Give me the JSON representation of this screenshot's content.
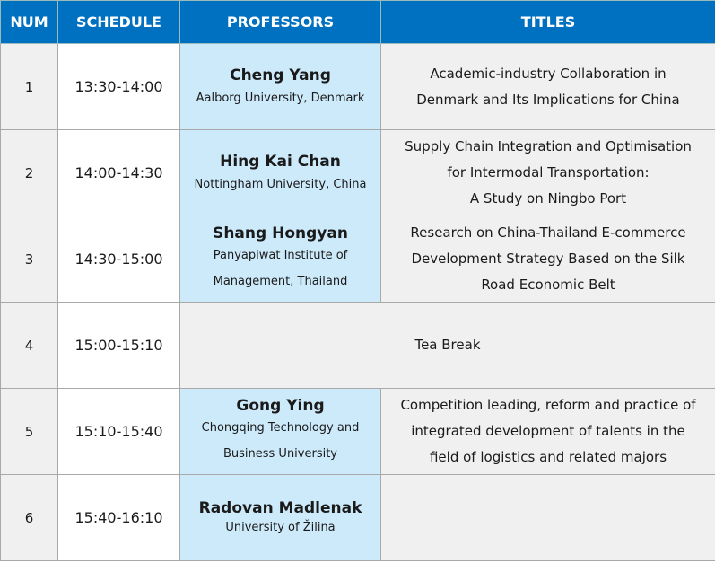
{
  "headers": {
    "num": "NUM",
    "schedule": "SCHEDULE",
    "professors": "PROFESSORS",
    "titles": "TITLES"
  },
  "rows": [
    {
      "num": "1",
      "schedule": "13:30-14:00",
      "professor": "Cheng Yang",
      "affiliation": "Aalborg University, Denmark",
      "title_lines": [
        "Academic-industry Collaboration in",
        "Denmark and Its Implications for China"
      ]
    },
    {
      "num": "2",
      "schedule": "14:00-14:30",
      "professor": "Hing Kai Chan",
      "affiliation": "Nottingham University, China",
      "title_lines": [
        "Supply Chain Integration and Optimisation",
        "for Intermodal Transportation:",
        "A Study on Ningbo Port"
      ]
    },
    {
      "num": "3",
      "schedule": "14:30-15:00",
      "professor": "Shang Hongyan",
      "affiliation_lines": [
        "Panyapiwat Institute of",
        "Management, Thailand"
      ],
      "title_lines": [
        "Research on China-Thailand E-commerce",
        "Development Strategy Based on the Silk",
        "Road Economic Belt"
      ]
    },
    {
      "num": "4",
      "schedule": "15:00-15:10",
      "merged": "Tea Break"
    },
    {
      "num": "5",
      "schedule": "15:10-15:40",
      "professor": "Gong Ying",
      "affiliation_lines": [
        "Chongqing Technology and",
        "Business University"
      ],
      "title_lines": [
        "Competition leading, reform and practice of",
        "integrated development of talents in the",
        "field of logistics and related majors"
      ]
    },
    {
      "num": "6",
      "schedule": "15:40-16:10",
      "professor": "Radovan Madlenak",
      "affiliation": "University of Žilina",
      "title_lines": []
    }
  ],
  "colors": {
    "header": "#0070c0",
    "professor_cell": "#cdeafb",
    "gray_cell": "#f0f0f0"
  }
}
